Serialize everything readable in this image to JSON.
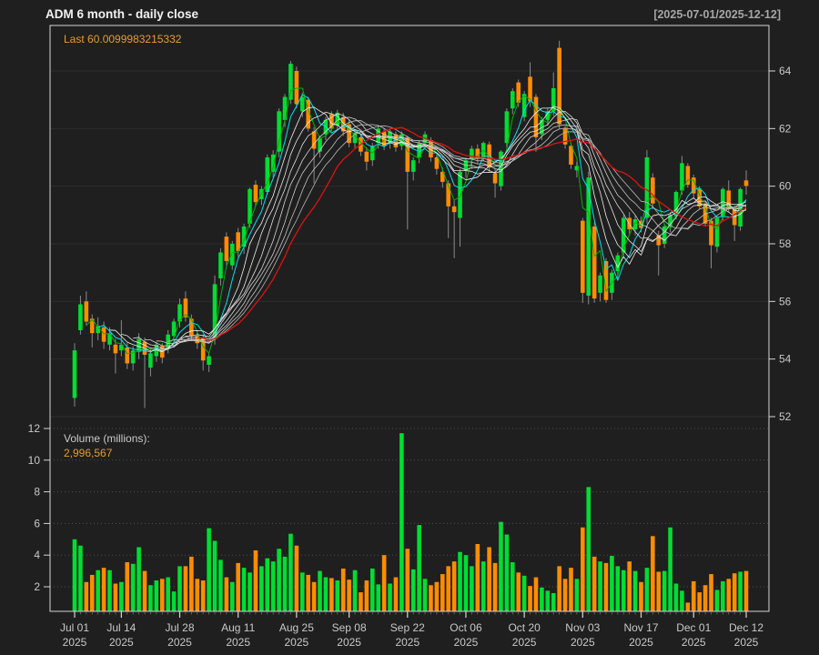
{
  "header": {
    "title": "ADM  6 month - daily close",
    "date_range": "[2025-07-01/2025-12-12]"
  },
  "price_panel": {
    "last_label": "Last 60.0099983215332"
  },
  "volume_panel": {
    "units_label": "Volume (millions):",
    "last_volume": "2,996,567"
  },
  "chart_data": {
    "type": "candlestick",
    "title": "ADM  6 month - daily close",
    "subtitle": "[2025-07-01/2025-12-12]",
    "symbol": "ADM",
    "last_close": 60.0099983215332,
    "last_volume": 2996567,
    "volume_unit": "millions",
    "grid": true,
    "y_axis": {
      "side": "right",
      "ticks": [
        52,
        54,
        56,
        58,
        60,
        62,
        64
      ],
      "range": [
        51.8,
        65.6
      ]
    },
    "volume_axis": {
      "side": "left",
      "ticks": [
        2,
        4,
        6,
        8,
        10,
        12
      ],
      "range": [
        0.45,
        12.2
      ]
    },
    "x_ticks": [
      {
        "i": 0,
        "label": "Jul 01",
        "year": "2025"
      },
      {
        "i": 8,
        "label": "Jul 14",
        "year": "2025"
      },
      {
        "i": 18,
        "label": "Jul 28",
        "year": "2025"
      },
      {
        "i": 28,
        "label": "Aug 11",
        "year": "2025"
      },
      {
        "i": 38,
        "label": "Aug 25",
        "year": "2025"
      },
      {
        "i": 47,
        "label": "Sep 08",
        "year": "2025"
      },
      {
        "i": 57,
        "label": "Sep 22",
        "year": "2025"
      },
      {
        "i": 67,
        "label": "Oct 06",
        "year": "2025"
      },
      {
        "i": 77,
        "label": "Oct 20",
        "year": "2025"
      },
      {
        "i": 87,
        "label": "Nov 03",
        "year": "2025"
      },
      {
        "i": 97,
        "label": "Nov 17",
        "year": "2025"
      },
      {
        "i": 106,
        "label": "Dec 01",
        "year": "2025"
      },
      {
        "i": 115,
        "label": "Dec 12",
        "year": "2025"
      }
    ],
    "colors": {
      "up": "#00DD33",
      "down": "#FF8C00",
      "wick": "#8A8A8A",
      "background": "#1F1F1F",
      "border": "#D5D5D5",
      "price_grid": "#2D2D2D",
      "volume_grid": "#4E4E4E",
      "axis_text": "#C8C8C8",
      "accent_orange": "#E89B2D"
    },
    "overlays": [
      {
        "type": "sma",
        "period": 3,
        "color": "#00B400",
        "width": 1.0
      },
      {
        "type": "sma",
        "period": 5,
        "color": "#00E0EE",
        "width": 1.0
      },
      {
        "type": "sma",
        "period": 7,
        "color": "#F2F2F2",
        "width": 0.8
      },
      {
        "type": "sma",
        "period": 9,
        "color": "#EAEAEA",
        "width": 0.8
      },
      {
        "type": "sma",
        "period": 11,
        "color": "#E0E0E0",
        "width": 0.8
      },
      {
        "type": "sma",
        "period": 13,
        "color": "#D6D6D6",
        "width": 0.8
      },
      {
        "type": "sma",
        "period": 15,
        "color": "#CCCCCC",
        "width": 0.8
      },
      {
        "type": "sma",
        "period": 17,
        "color": "#C2C2C2",
        "width": 0.8
      },
      {
        "type": "sma",
        "period": 19,
        "color": "#B8B8B8",
        "width": 0.8
      },
      {
        "type": "sma",
        "period": 22,
        "color": "#E01212",
        "width": 1.3
      }
    ],
    "columns": [
      "date",
      "open",
      "high",
      "low",
      "close",
      "volume_millions"
    ],
    "series": [
      [
        "2025-07-01",
        52.65,
        54.55,
        52.35,
        54.3,
        5.0
      ],
      [
        "2025-07-02",
        55.0,
        56.2,
        54.85,
        55.9,
        4.6
      ],
      [
        "2025-07-03",
        56.0,
        56.35,
        55.15,
        55.3,
        2.3
      ],
      [
        "2025-07-07",
        55.4,
        55.55,
        54.4,
        54.9,
        2.75
      ],
      [
        "2025-07-08",
        54.9,
        55.45,
        54.65,
        55.15,
        3.05
      ],
      [
        "2025-07-09",
        55.1,
        55.3,
        54.35,
        54.6,
        3.2
      ],
      [
        "2025-07-10",
        54.5,
        55.1,
        54.3,
        54.9,
        3.05
      ],
      [
        "2025-07-11",
        54.5,
        54.7,
        53.5,
        54.2,
        2.2
      ],
      [
        "2025-07-14",
        54.3,
        55.35,
        54.1,
        54.5,
        2.3
      ],
      [
        "2025-07-15",
        54.4,
        54.55,
        53.65,
        53.85,
        3.55
      ],
      [
        "2025-07-16",
        53.85,
        54.45,
        53.6,
        54.3,
        3.45
      ],
      [
        "2025-07-17",
        54.25,
        54.9,
        54.0,
        54.7,
        4.5
      ],
      [
        "2025-07-18",
        54.6,
        54.75,
        52.3,
        54.15,
        3.0
      ],
      [
        "2025-07-21",
        53.7,
        54.35,
        53.4,
        54.2,
        2.1
      ],
      [
        "2025-07-22",
        54.1,
        54.6,
        53.9,
        54.5,
        2.4
      ],
      [
        "2025-07-23",
        54.45,
        54.55,
        53.85,
        54.05,
        2.5
      ],
      [
        "2025-07-24",
        54.4,
        55.0,
        54.2,
        54.85,
        2.6
      ],
      [
        "2025-07-25",
        54.8,
        55.4,
        54.6,
        55.3,
        1.7
      ],
      [
        "2025-07-28",
        55.3,
        56.1,
        55.1,
        55.9,
        3.3
      ],
      [
        "2025-07-29",
        56.1,
        56.35,
        55.3,
        55.45,
        3.3
      ],
      [
        "2025-07-30",
        55.4,
        55.55,
        54.65,
        54.8,
        3.9
      ],
      [
        "2025-07-31",
        54.8,
        55.0,
        54.35,
        54.55,
        2.5
      ],
      [
        "2025-08-01",
        54.75,
        54.85,
        53.6,
        53.95,
        2.4
      ],
      [
        "2025-08-04",
        53.8,
        54.25,
        53.55,
        54.1,
        5.7
      ],
      [
        "2025-08-05",
        54.75,
        56.9,
        54.5,
        56.6,
        4.9
      ],
      [
        "2025-08-06",
        56.8,
        57.85,
        56.55,
        57.7,
        3.7
      ],
      [
        "2025-08-07",
        58.25,
        58.4,
        57.25,
        57.4,
        2.6
      ],
      [
        "2025-08-08",
        57.25,
        58.1,
        57.1,
        58.0,
        2.3
      ],
      [
        "2025-08-11",
        58.4,
        58.55,
        57.55,
        57.75,
        3.5
      ],
      [
        "2025-08-12",
        57.9,
        58.7,
        57.65,
        58.6,
        3.2
      ],
      [
        "2025-08-13",
        58.7,
        59.95,
        58.55,
        59.9,
        2.9
      ],
      [
        "2025-08-14",
        60.05,
        60.2,
        59.3,
        59.45,
        4.3
      ],
      [
        "2025-08-15",
        59.55,
        60.0,
        59.35,
        59.9,
        3.3
      ],
      [
        "2025-08-18",
        59.8,
        61.1,
        59.7,
        61.0,
        3.8
      ],
      [
        "2025-08-19",
        60.5,
        61.25,
        60.3,
        61.1,
        3.6
      ],
      [
        "2025-08-20",
        61.2,
        62.7,
        61.0,
        62.6,
        4.4
      ],
      [
        "2025-08-21",
        62.3,
        63.2,
        62.05,
        63.1,
        3.9
      ],
      [
        "2025-08-22",
        63.0,
        64.35,
        62.85,
        64.25,
        5.35
      ],
      [
        "2025-08-25",
        64.0,
        64.15,
        62.7,
        62.85,
        4.6
      ],
      [
        "2025-08-26",
        62.6,
        63.25,
        62.4,
        63.1,
        2.9
      ],
      [
        "2025-08-27",
        63.0,
        63.1,
        61.9,
        62.0,
        2.75
      ],
      [
        "2025-08-28",
        61.9,
        62.05,
        60.1,
        61.3,
        2.3
      ],
      [
        "2025-08-29",
        61.2,
        61.75,
        61.0,
        61.65,
        3.0
      ],
      [
        "2025-09-02",
        61.8,
        62.4,
        61.6,
        62.3,
        2.6
      ],
      [
        "2025-09-03",
        62.5,
        62.6,
        61.9,
        62.0,
        2.55
      ],
      [
        "2025-09-04",
        62.1,
        62.65,
        61.95,
        62.55,
        2.4
      ],
      [
        "2025-09-05",
        62.4,
        62.55,
        61.75,
        61.9,
        3.15
      ],
      [
        "2025-09-08",
        62.15,
        62.3,
        61.35,
        61.5,
        2.45
      ],
      [
        "2025-09-09",
        61.5,
        61.95,
        61.3,
        61.85,
        3.05
      ],
      [
        "2025-09-10",
        61.7,
        61.8,
        61.05,
        61.2,
        1.65
      ],
      [
        "2025-09-11",
        61.2,
        61.35,
        60.55,
        60.85,
        2.4
      ],
      [
        "2025-09-12",
        60.9,
        61.5,
        60.7,
        61.4,
        3.15
      ],
      [
        "2025-09-15",
        61.5,
        62.1,
        61.3,
        62.0,
        2.15
      ],
      [
        "2025-09-16",
        61.9,
        62.0,
        61.25,
        61.4,
        4.0
      ],
      [
        "2025-09-17",
        61.5,
        62.0,
        61.3,
        61.9,
        2.2
      ],
      [
        "2025-09-18",
        61.8,
        61.9,
        61.2,
        61.35,
        2.6
      ],
      [
        "2025-09-19",
        61.4,
        61.9,
        61.25,
        61.8,
        11.7
      ],
      [
        "2025-09-22",
        61.7,
        61.75,
        58.5,
        60.5,
        4.4
      ],
      [
        "2025-09-23",
        60.5,
        61.0,
        60.2,
        60.9,
        3.1
      ],
      [
        "2025-09-24",
        61.0,
        61.6,
        60.8,
        61.5,
        5.9
      ],
      [
        "2025-09-25",
        61.5,
        61.9,
        61.3,
        61.8,
        2.5
      ],
      [
        "2025-09-26",
        61.6,
        61.7,
        60.85,
        61.0,
        2.1
      ],
      [
        "2025-09-29",
        61.0,
        61.1,
        60.4,
        60.6,
        2.3
      ],
      [
        "2025-09-30",
        60.5,
        60.65,
        59.95,
        60.15,
        2.8
      ],
      [
        "2025-10-01",
        60.1,
        60.2,
        58.2,
        59.3,
        3.3
      ],
      [
        "2025-10-02",
        59.3,
        59.5,
        57.5,
        59.1,
        3.6
      ],
      [
        "2025-10-03",
        58.9,
        60.6,
        57.9,
        60.5,
        4.2
      ],
      [
        "2025-10-06",
        60.55,
        61.0,
        60.3,
        60.9,
        4.0
      ],
      [
        "2025-10-07",
        60.95,
        61.4,
        60.6,
        61.3,
        3.3
      ],
      [
        "2025-10-08",
        61.3,
        61.45,
        60.8,
        60.95,
        4.7
      ],
      [
        "2025-10-09",
        61.0,
        61.55,
        60.85,
        61.5,
        3.6
      ],
      [
        "2025-10-10",
        61.45,
        61.55,
        60.5,
        60.65,
        4.5
      ],
      [
        "2025-10-13",
        60.45,
        60.6,
        59.6,
        60.1,
        3.5
      ],
      [
        "2025-10-14",
        60.0,
        61.25,
        59.85,
        61.2,
        6.1
      ],
      [
        "2025-10-15",
        61.5,
        62.7,
        61.35,
        62.6,
        5.3
      ],
      [
        "2025-10-16",
        62.7,
        63.4,
        62.5,
        63.3,
        3.55
      ],
      [
        "2025-10-17",
        63.6,
        63.7,
        62.75,
        62.9,
        2.9
      ],
      [
        "2025-10-20",
        62.4,
        63.3,
        62.25,
        63.2,
        2.7
      ],
      [
        "2025-10-21",
        63.8,
        64.3,
        62.75,
        62.95,
        2.05
      ],
      [
        "2025-10-22",
        63.1,
        63.2,
        61.2,
        61.7,
        2.6
      ],
      [
        "2025-10-23",
        61.8,
        62.4,
        61.6,
        62.3,
        1.95
      ],
      [
        "2025-10-24",
        62.3,
        62.7,
        62.1,
        62.6,
        1.75
      ],
      [
        "2025-10-27",
        62.6,
        63.95,
        62.45,
        63.4,
        1.6
      ],
      [
        "2025-10-28",
        64.8,
        65.05,
        62.0,
        62.15,
        3.3
      ],
      [
        "2025-10-29",
        62.0,
        62.1,
        61.3,
        61.45,
        2.5
      ],
      [
        "2025-10-30",
        61.4,
        61.5,
        60.6,
        60.75,
        3.2
      ],
      [
        "2025-10-31",
        60.55,
        60.85,
        60.3,
        60.7,
        2.5
      ],
      [
        "2025-11-03",
        58.8,
        58.9,
        55.95,
        56.3,
        5.75
      ],
      [
        "2025-11-04",
        56.2,
        60.5,
        55.9,
        60.3,
        8.3
      ],
      [
        "2025-11-05",
        58.6,
        58.75,
        55.95,
        56.1,
        3.9
      ],
      [
        "2025-11-06",
        56.3,
        57.0,
        56.0,
        56.9,
        3.6
      ],
      [
        "2025-11-07",
        57.4,
        57.5,
        55.95,
        56.05,
        3.5
      ],
      [
        "2025-11-10",
        56.3,
        57.1,
        56.05,
        57.0,
        3.95
      ],
      [
        "2025-11-11",
        57.05,
        57.7,
        56.8,
        57.6,
        3.3
      ],
      [
        "2025-11-12",
        57.7,
        59.0,
        57.5,
        58.9,
        3.05
      ],
      [
        "2025-11-13",
        58.9,
        59.1,
        58.3,
        58.5,
        3.6
      ],
      [
        "2025-11-14",
        58.5,
        59.0,
        58.3,
        58.85,
        3.0
      ],
      [
        "2025-11-17",
        58.8,
        58.95,
        58.4,
        58.55,
        2.3
      ],
      [
        "2025-11-18",
        58.9,
        61.25,
        58.7,
        61.0,
        3.2
      ],
      [
        "2025-11-19",
        60.3,
        60.45,
        59.2,
        59.4,
        5.2
      ],
      [
        "2025-11-20",
        58.3,
        58.45,
        56.9,
        57.95,
        2.95
      ],
      [
        "2025-11-21",
        58.0,
        58.7,
        57.85,
        58.6,
        3.0
      ],
      [
        "2025-11-24",
        58.6,
        59.1,
        58.4,
        59.0,
        5.75
      ],
      [
        "2025-11-25",
        59.0,
        59.85,
        58.85,
        59.8,
        2.2
      ],
      [
        "2025-11-26",
        59.85,
        61.05,
        59.7,
        60.8,
        1.75
      ],
      [
        "2025-11-28",
        60.7,
        60.8,
        59.95,
        60.05,
        1.0
      ],
      [
        "2025-12-01",
        60.3,
        60.4,
        59.6,
        59.75,
        2.35
      ],
      [
        "2025-12-02",
        59.9,
        60.0,
        59.2,
        59.3,
        1.65
      ],
      [
        "2025-12-03",
        59.4,
        59.5,
        58.6,
        58.7,
        2.1
      ],
      [
        "2025-12-04",
        58.8,
        58.9,
        57.15,
        57.95,
        2.8
      ],
      [
        "2025-12-05",
        57.9,
        58.95,
        57.7,
        58.9,
        1.8
      ],
      [
        "2025-12-08",
        58.95,
        59.95,
        58.8,
        59.9,
        2.35
      ],
      [
        "2025-12-09",
        59.85,
        60.2,
        59.1,
        59.2,
        2.5
      ],
      [
        "2025-12-10",
        59.2,
        59.3,
        58.1,
        58.65,
        2.85
      ],
      [
        "2025-12-11",
        58.6,
        59.95,
        58.45,
        59.9,
        2.95
      ],
      [
        "2025-12-12",
        60.2,
        60.55,
        59.7,
        60.0099983215332,
        2.996567
      ]
    ]
  }
}
